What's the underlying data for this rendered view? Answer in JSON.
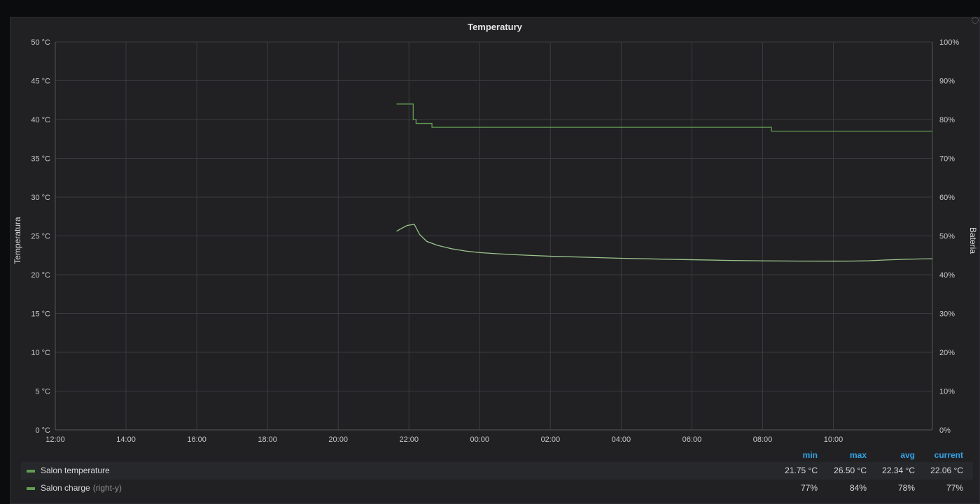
{
  "panel": {
    "title": "Temperatury"
  },
  "chart_data": {
    "type": "line",
    "title": "Temperatury",
    "xlabel": "",
    "ylabel_left": "Temperatura",
    "ylabel_right": "Bateria",
    "x_ticks": [
      "12:00",
      "14:00",
      "16:00",
      "18:00",
      "20:00",
      "22:00",
      "00:00",
      "02:00",
      "04:00",
      "06:00",
      "08:00",
      "10:00"
    ],
    "y_left_ticks": [
      "0 °C",
      "5 °C",
      "10 °C",
      "15 °C",
      "20 °C",
      "25 °C",
      "30 °C",
      "35 °C",
      "40 °C",
      "45 °C",
      "50 °C"
    ],
    "y_right_ticks": [
      "0%",
      "10%",
      "20%",
      "30%",
      "40%",
      "50%",
      "60%",
      "70%",
      "80%",
      "90%",
      "100%"
    ],
    "x_range_hours": [
      12,
      36.8
    ],
    "ylim_left": [
      0,
      50
    ],
    "ylim_right": [
      0,
      100
    ],
    "grid": true,
    "series": [
      {
        "name": "Salon temperature",
        "axis": "left",
        "color": "#9ac48a",
        "points": [
          [
            21.65,
            25.6
          ],
          [
            21.8,
            26.0
          ],
          [
            21.95,
            26.35
          ],
          [
            22.1,
            26.45
          ],
          [
            22.15,
            26.5
          ],
          [
            22.3,
            25.2
          ],
          [
            22.5,
            24.3
          ],
          [
            22.8,
            23.8
          ],
          [
            23.2,
            23.35
          ],
          [
            23.6,
            23.05
          ],
          [
            24.0,
            22.85
          ],
          [
            24.5,
            22.7
          ],
          [
            25.0,
            22.58
          ],
          [
            25.5,
            22.48
          ],
          [
            26.0,
            22.38
          ],
          [
            27.0,
            22.25
          ],
          [
            28.0,
            22.12
          ],
          [
            29.0,
            22.02
          ],
          [
            30.0,
            21.93
          ],
          [
            31.0,
            21.85
          ],
          [
            32.0,
            21.79
          ],
          [
            33.0,
            21.76
          ],
          [
            34.0,
            21.75
          ],
          [
            34.5,
            21.76
          ],
          [
            35.0,
            21.8
          ],
          [
            35.5,
            21.9
          ],
          [
            36.0,
            21.98
          ],
          [
            36.5,
            22.04
          ],
          [
            36.8,
            22.06
          ]
        ]
      },
      {
        "name": "Salon charge",
        "axis": "right",
        "axis_note": "(right-y)",
        "color": "#629e51",
        "points": [
          [
            21.65,
            84
          ],
          [
            22.05,
            84
          ],
          [
            22.12,
            80
          ],
          [
            22.2,
            79
          ],
          [
            22.6,
            79
          ],
          [
            22.65,
            78
          ],
          [
            32.2,
            78
          ],
          [
            32.25,
            77
          ],
          [
            36.8,
            77
          ]
        ]
      }
    ]
  },
  "legend": {
    "headers": [
      "min",
      "max",
      "avg",
      "current"
    ],
    "rows": [
      {
        "name": "Salon temperature",
        "note": "",
        "min": "21.75 °C",
        "max": "26.50 °C",
        "avg": "22.34 °C",
        "current": "22.06 °C"
      },
      {
        "name": "Salon charge",
        "note": "(right-y)",
        "min": "77%",
        "max": "84%",
        "avg": "78%",
        "current": "77%"
      }
    ]
  }
}
